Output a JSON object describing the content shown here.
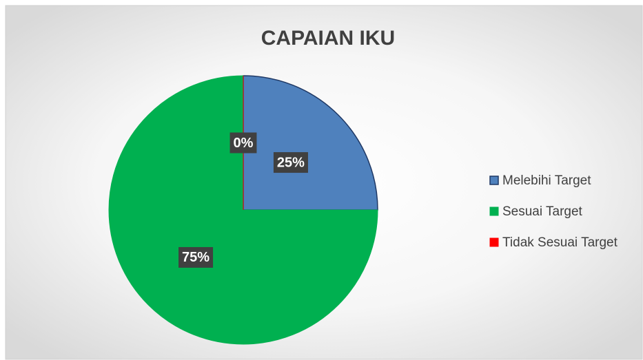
{
  "chart_data": {
    "type": "pie",
    "title": "CAPAIAN IKU",
    "categories": [
      "Melebihi Target",
      "Sesuai Target",
      "Tidak Sesuai Target"
    ],
    "values": [
      25,
      75,
      0
    ],
    "value_labels": [
      "25%",
      "75%",
      "0%"
    ],
    "colors": [
      "#4f81bd",
      "#00b050",
      "#ff0000"
    ],
    "legend": "right"
  }
}
